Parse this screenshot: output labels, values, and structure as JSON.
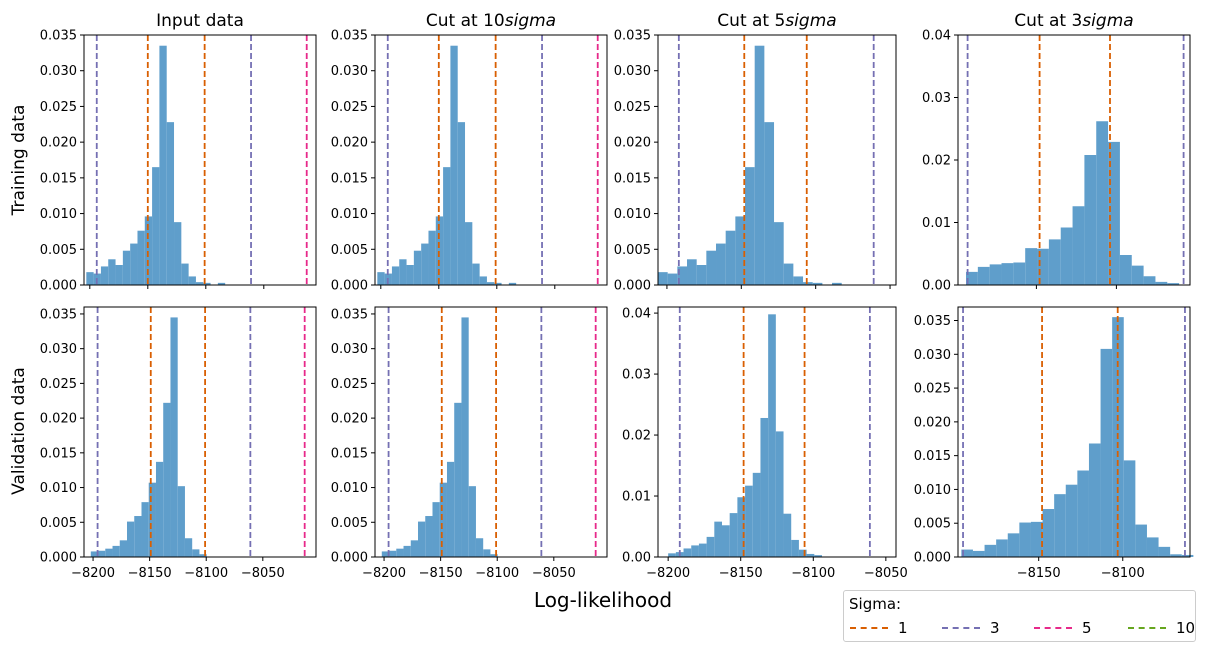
{
  "figure": {
    "xlabel": "Log-likelihood",
    "row_labels": [
      "Training data",
      "Validation data"
    ],
    "column_titles": [
      {
        "text": "Input data",
        "suffix": ""
      },
      {
        "text": "Cut at 10",
        "suffix": "sigma"
      },
      {
        "text": "Cut at 5",
        "suffix": "sigma"
      },
      {
        "text": "Cut at 3",
        "suffix": "sigma"
      }
    ]
  },
  "legend": {
    "title": "Sigma:",
    "entries": [
      {
        "label": "1",
        "color": "#d95f02"
      },
      {
        "label": "3",
        "color": "#7570b3"
      },
      {
        "label": "5",
        "color": "#e7298a"
      },
      {
        "label": "10",
        "color": "#66a61e"
      }
    ]
  },
  "colors": {
    "bars": "#5f9ecb"
  },
  "chart_data": [
    {
      "type": "bar",
      "panel": "Training / Input data",
      "title": "Input data",
      "ylabel": "Training data",
      "xlim": [
        -8205,
        -8005
      ],
      "ylim": [
        0,
        0.035
      ],
      "yticks": [
        0.0,
        0.005,
        0.01,
        0.015,
        0.02,
        0.025,
        0.03,
        0.035
      ],
      "ytick_labels": [
        "0.000",
        "0.005",
        "0.010",
        "0.015",
        "0.020",
        "0.025",
        "0.030",
        "0.035"
      ],
      "xticks": [
        -8200,
        -8150,
        -8100,
        -8050
      ],
      "xtick_labels": [],
      "bin_start": -8203,
      "bin_width": 6.3,
      "values": [
        0.0018,
        0.0016,
        0.0026,
        0.0036,
        0.0028,
        0.0048,
        0.0058,
        0.0076,
        0.0096,
        0.0165,
        0.0335,
        0.0228,
        0.0088,
        0.003,
        0.0012,
        0.0004,
        0.0003,
        0.0,
        0.0003
      ],
      "vlines": [
        {
          "x": -8150,
          "sigma": "1"
        },
        {
          "x": -8101,
          "sigma": "1"
        },
        {
          "x": -8194,
          "sigma": "3"
        },
        {
          "x": -8061,
          "sigma": "3"
        },
        {
          "x": -8013,
          "sigma": "5"
        }
      ]
    },
    {
      "type": "bar",
      "panel": "Training / Cut at 10sigma",
      "title": "Cut at 10sigma",
      "xlim": [
        -8205,
        -8005
      ],
      "ylim": [
        0,
        0.035
      ],
      "yticks": [
        0.0,
        0.005,
        0.01,
        0.015,
        0.02,
        0.025,
        0.03,
        0.035
      ],
      "ytick_labels": [
        "0.000",
        "0.005",
        "0.010",
        "0.015",
        "0.020",
        "0.025",
        "0.030",
        "0.035"
      ],
      "xticks": [
        -8200,
        -8150,
        -8100,
        -8050
      ],
      "xtick_labels": [],
      "bin_start": -8203,
      "bin_width": 6.3,
      "values": [
        0.0018,
        0.0016,
        0.0026,
        0.0036,
        0.0028,
        0.0048,
        0.0058,
        0.0076,
        0.0096,
        0.0165,
        0.0335,
        0.0228,
        0.0088,
        0.003,
        0.0012,
        0.0004,
        0.0003,
        0.0,
        0.0003
      ],
      "vlines": [
        {
          "x": -8150,
          "sigma": "1"
        },
        {
          "x": -8101,
          "sigma": "1"
        },
        {
          "x": -8194,
          "sigma": "3"
        },
        {
          "x": -8061,
          "sigma": "3"
        },
        {
          "x": -8013,
          "sigma": "5"
        }
      ]
    },
    {
      "type": "bar",
      "panel": "Training / Cut at 5sigma",
      "title": "Cut at 5sigma",
      "xlim": [
        -8206,
        -8046
      ],
      "ylim": [
        0,
        0.035
      ],
      "yticks": [
        0.0,
        0.005,
        0.01,
        0.015,
        0.02,
        0.025,
        0.03,
        0.035
      ],
      "ytick_labels": [
        "0.000",
        "0.005",
        "0.010",
        "0.015",
        "0.020",
        "0.025",
        "0.030",
        "0.035"
      ],
      "xticks": [
        -8200,
        -8150,
        -8100,
        -8050
      ],
      "xtick_labels": [],
      "bin_start": -8206,
      "bin_width": 6.5,
      "values": [
        0.0018,
        0.0016,
        0.0026,
        0.0036,
        0.0028,
        0.0048,
        0.0058,
        0.0076,
        0.0096,
        0.0165,
        0.0335,
        0.0228,
        0.0088,
        0.003,
        0.0012,
        0.0004,
        0.0003,
        0.0,
        0.0003
      ],
      "vlines": [
        {
          "x": -8148,
          "sigma": "1"
        },
        {
          "x": -8106,
          "sigma": "1"
        },
        {
          "x": -8192,
          "sigma": "3"
        },
        {
          "x": -8061,
          "sigma": "3"
        }
      ]
    },
    {
      "type": "bar",
      "panel": "Training / Cut at 3sigma",
      "title": "Cut at 3sigma",
      "xlim": [
        -8199,
        -8054
      ],
      "ylim": [
        0,
        0.04
      ],
      "yticks": [
        0.0,
        0.01,
        0.02,
        0.03,
        0.04
      ],
      "ytick_labels": [
        "0.00",
        "0.01",
        "0.02",
        "0.03",
        "0.04"
      ],
      "xticks": [
        -8150,
        -8100
      ],
      "xtick_labels": [],
      "bin_start": -8194,
      "bin_width": 7.4,
      "values": [
        0.0021,
        0.0029,
        0.0033,
        0.0035,
        0.0036,
        0.0059,
        0.0058,
        0.0073,
        0.0092,
        0.0126,
        0.0208,
        0.0262,
        0.0229,
        0.0048,
        0.0031,
        0.0014,
        0.0005,
        0.0003
      ],
      "vlines": [
        {
          "x": -8148,
          "sigma": "1"
        },
        {
          "x": -8104,
          "sigma": "1"
        },
        {
          "x": -8193,
          "sigma": "3"
        },
        {
          "x": -8058,
          "sigma": "3"
        }
      ]
    },
    {
      "type": "bar",
      "panel": "Validation / Input data",
      "ylabel": "Validation data",
      "xlim": [
        -8208,
        -8003
      ],
      "ylim": [
        0,
        0.036
      ],
      "yticks": [
        0.0,
        0.005,
        0.01,
        0.015,
        0.02,
        0.025,
        0.03,
        0.035
      ],
      "ytick_labels": [
        "0.000",
        "0.005",
        "0.010",
        "0.015",
        "0.020",
        "0.025",
        "0.030",
        "0.035"
      ],
      "xticks": [
        -8200,
        -8150,
        -8100,
        -8050
      ],
      "xtick_labels": [
        "−8200",
        "−8150",
        "−8100",
        "−8050"
      ],
      "bin_start": -8202,
      "bin_width": 6.4,
      "values": [
        0.0008,
        0.0009,
        0.0012,
        0.0016,
        0.0024,
        0.0051,
        0.0059,
        0.0079,
        0.0107,
        0.0137,
        0.0222,
        0.0345,
        0.0102,
        0.0027,
        0.0011,
        0.0004,
        0.0
      ],
      "vlines": [
        {
          "x": -8149,
          "sigma": "1"
        },
        {
          "x": -8101,
          "sigma": "1"
        },
        {
          "x": -8196,
          "sigma": "3"
        },
        {
          "x": -8061,
          "sigma": "3"
        },
        {
          "x": -8013,
          "sigma": "5"
        }
      ]
    },
    {
      "type": "bar",
      "panel": "Validation / Cut at 10sigma",
      "xlim": [
        -8208,
        -8003
      ],
      "ylim": [
        0,
        0.036
      ],
      "yticks": [
        0.0,
        0.005,
        0.01,
        0.015,
        0.02,
        0.025,
        0.03,
        0.035
      ],
      "ytick_labels": [
        "0.000",
        "0.005",
        "0.010",
        "0.015",
        "0.020",
        "0.025",
        "0.030",
        "0.035"
      ],
      "xticks": [
        -8200,
        -8150,
        -8100,
        -8050
      ],
      "xtick_labels": [
        "−8200",
        "−8150",
        "−8100",
        "−8050"
      ],
      "bin_start": -8202,
      "bin_width": 6.4,
      "values": [
        0.0008,
        0.0009,
        0.0012,
        0.0016,
        0.0024,
        0.0051,
        0.0059,
        0.0079,
        0.0107,
        0.0137,
        0.0222,
        0.0345,
        0.0102,
        0.0027,
        0.0011,
        0.0004,
        0.0
      ],
      "vlines": [
        {
          "x": -8149,
          "sigma": "1"
        },
        {
          "x": -8101,
          "sigma": "1"
        },
        {
          "x": -8196,
          "sigma": "3"
        },
        {
          "x": -8061,
          "sigma": "3"
        },
        {
          "x": -8013,
          "sigma": "5"
        }
      ]
    },
    {
      "type": "bar",
      "panel": "Validation / Cut at 5sigma",
      "xlim": [
        -8207,
        -8043
      ],
      "ylim": [
        0,
        0.041
      ],
      "yticks": [
        0.0,
        0.01,
        0.02,
        0.03,
        0.04
      ],
      "ytick_labels": [
        "0.00",
        "0.01",
        "0.02",
        "0.03",
        "0.04"
      ],
      "xticks": [
        -8200,
        -8150,
        -8100,
        -8050
      ],
      "xtick_labels": [
        "−8200",
        "−8150",
        "−8100",
        "−8050"
      ],
      "bin_start": -8200,
      "bin_width": 5.3,
      "values": [
        0.0006,
        0.0008,
        0.0014,
        0.0019,
        0.0022,
        0.0033,
        0.0058,
        0.0052,
        0.0072,
        0.0098,
        0.0117,
        0.0138,
        0.0228,
        0.0398,
        0.0206,
        0.0071,
        0.0028,
        0.0012,
        0.0005,
        0.0003,
        0.0
      ],
      "vlines": [
        {
          "x": -8148,
          "sigma": "1"
        },
        {
          "x": -8106,
          "sigma": "1"
        },
        {
          "x": -8192,
          "sigma": "3"
        },
        {
          "x": -8061,
          "sigma": "3"
        }
      ]
    },
    {
      "type": "bar",
      "panel": "Validation / Cut at 3sigma",
      "xlim": [
        -8198,
        -8060
      ],
      "ylim": [
        0,
        0.037
      ],
      "yticks": [
        0.0,
        0.005,
        0.01,
        0.015,
        0.02,
        0.025,
        0.03,
        0.035
      ],
      "ytick_labels": [
        "0.000",
        "0.005",
        "0.010",
        "0.015",
        "0.020",
        "0.025",
        "0.030",
        "0.035"
      ],
      "xticks": [
        -8150,
        -8100
      ],
      "xtick_labels": [
        "−8150",
        "−8100"
      ],
      "bin_start": -8196,
      "bin_width": 6.9,
      "values": [
        0.0011,
        0.0009,
        0.0018,
        0.0026,
        0.0035,
        0.0051,
        0.0052,
        0.0071,
        0.0093,
        0.0107,
        0.0128,
        0.0168,
        0.0308,
        0.0355,
        0.0143,
        0.0048,
        0.0029,
        0.0015,
        0.0004,
        0.0003
      ],
      "vlines": [
        {
          "x": -8148,
          "sigma": "1"
        },
        {
          "x": -8103,
          "sigma": "1"
        },
        {
          "x": -8195,
          "sigma": "3"
        },
        {
          "x": -8063,
          "sigma": "3"
        }
      ]
    }
  ]
}
